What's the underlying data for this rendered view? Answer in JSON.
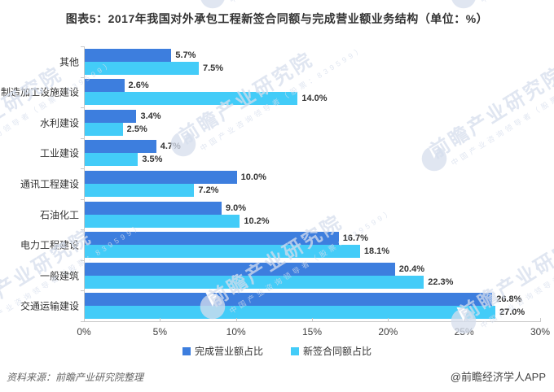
{
  "title": "图表5：2017年我国对外承包工程新签合同额与完成营业额业务结构（单位：%）",
  "chart_data": {
    "type": "bar",
    "orientation": "horizontal",
    "title": "图表5：2017年我国对外承包工程新签合同额与完成营业额业务结构（单位：%）",
    "categories": [
      "其他",
      "制造加工设施建设",
      "水利建设",
      "工业建设",
      "通讯工程建设",
      "石油化工",
      "电力工程建设",
      "一般建筑",
      "交通运输建设"
    ],
    "series": [
      {
        "name": "完成营业额占比",
        "color": "#3d7ede",
        "values": [
          5.7,
          2.6,
          3.4,
          4.7,
          10.0,
          9.0,
          16.7,
          20.4,
          26.8
        ]
      },
      {
        "name": "新签合同额占比",
        "color": "#43ccf8",
        "values": [
          7.5,
          14.0,
          2.5,
          3.5,
          7.2,
          10.2,
          18.1,
          22.3,
          27.0
        ]
      }
    ],
    "value_label_format": "percent_one_decimal",
    "xlabel": "",
    "ylabel": "",
    "xlim": [
      0,
      30
    ],
    "x_ticks": [
      "0%",
      "5%",
      "10%",
      "15%",
      "20%",
      "25%",
      "30%"
    ],
    "grid": false,
    "legend_position": "bottom"
  },
  "legend": {
    "items": [
      {
        "label": "完成营业额占比",
        "color": "#3d7ede"
      },
      {
        "label": "新签合同额占比",
        "color": "#43ccf8"
      }
    ]
  },
  "footer": {
    "source": "资料来源：前瞻产业研究院整理",
    "credit": "@前瞻经济学人APP"
  },
  "watermark": {
    "text": "前瞻产业研究院",
    "subtext": "中国产业咨询领导者（股票：839599）"
  }
}
